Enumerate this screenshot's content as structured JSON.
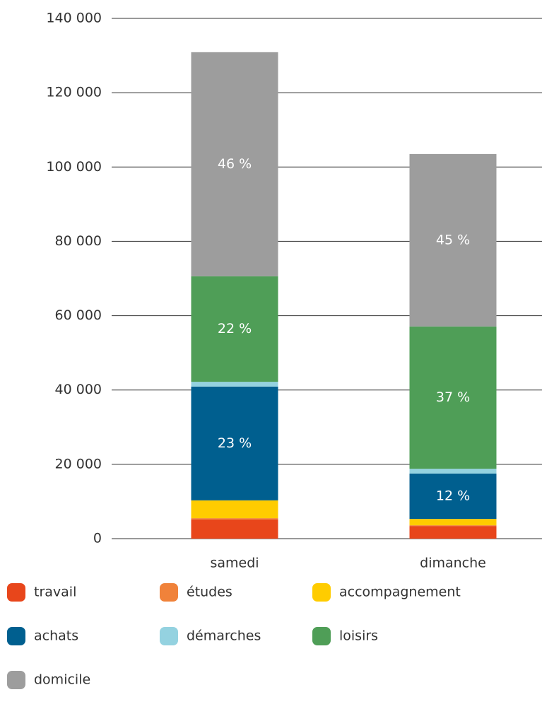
{
  "chart_data": {
    "type": "stacked-bar",
    "categories": [
      "samedi",
      "dimanche"
    ],
    "series": [
      {
        "name": "travail",
        "color": "#e8461b",
        "values": [
          5200,
          3400
        ]
      },
      {
        "name": "études",
        "color": "#f0823a",
        "values": [
          300,
          200
        ]
      },
      {
        "name": "accompagnement",
        "color": "#ffcc00",
        "values": [
          4800,
          1700
        ]
      },
      {
        "name": "achats",
        "color": "#005f8f",
        "values": [
          30600,
          12200
        ]
      },
      {
        "name": "démarches",
        "color": "#94d2e0",
        "values": [
          1300,
          1300
        ]
      },
      {
        "name": "loisirs",
        "color": "#4f9e57",
        "values": [
          28400,
          38300
        ],
        "share_labels": [
          "22 %",
          "37 %"
        ]
      },
      {
        "name": "domicile",
        "color": "#9d9d9d",
        "values": [
          60300,
          46400
        ],
        "share_labels": [
          "46 %",
          "45 %"
        ]
      }
    ],
    "achats_share_labels": [
      "23 %",
      "12 %"
    ],
    "ylim": [
      0,
      140000
    ],
    "yticks": [
      0,
      {
        "value": 20000,
        "label": "20 000"
      },
      {
        "value": 40000,
        "label": "40 000"
      },
      {
        "value": 60000,
        "label": "60 000"
      },
      {
        "value": 80000,
        "label": "80 000"
      },
      {
        "value": 100000,
        "label": "100 000"
      },
      {
        "value": 120000,
        "label": "120 000"
      },
      {
        "value": 140000,
        "label": "140 000"
      }
    ],
    "grid": true
  }
}
